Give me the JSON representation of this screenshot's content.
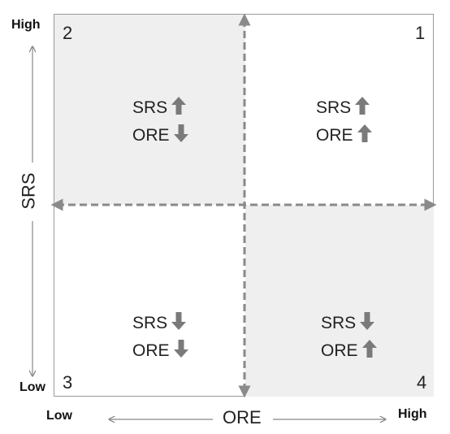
{
  "axes": {
    "y": {
      "title": "SRS",
      "high_label": "High",
      "low_label": "Low"
    },
    "x": {
      "title": "ORE",
      "low_label": "Low",
      "high_label": "High"
    }
  },
  "quadrants": [
    {
      "number": "1",
      "srs_label": "SRS",
      "srs_dir": "up",
      "ore_label": "ORE",
      "ore_dir": "up"
    },
    {
      "number": "2",
      "srs_label": "SRS",
      "srs_dir": "up",
      "ore_label": "ORE",
      "ore_dir": "down"
    },
    {
      "number": "3",
      "srs_label": "SRS",
      "srs_dir": "down",
      "ore_label": "ORE",
      "ore_dir": "down"
    },
    {
      "number": "4",
      "srs_label": "SRS",
      "srs_dir": "down",
      "ore_label": "ORE",
      "ore_dir": "up"
    }
  ],
  "colors": {
    "shade": "#efefef",
    "arrow": "#7a7a7a",
    "divider": "#8a8a8a",
    "axis_line": "#888888"
  }
}
